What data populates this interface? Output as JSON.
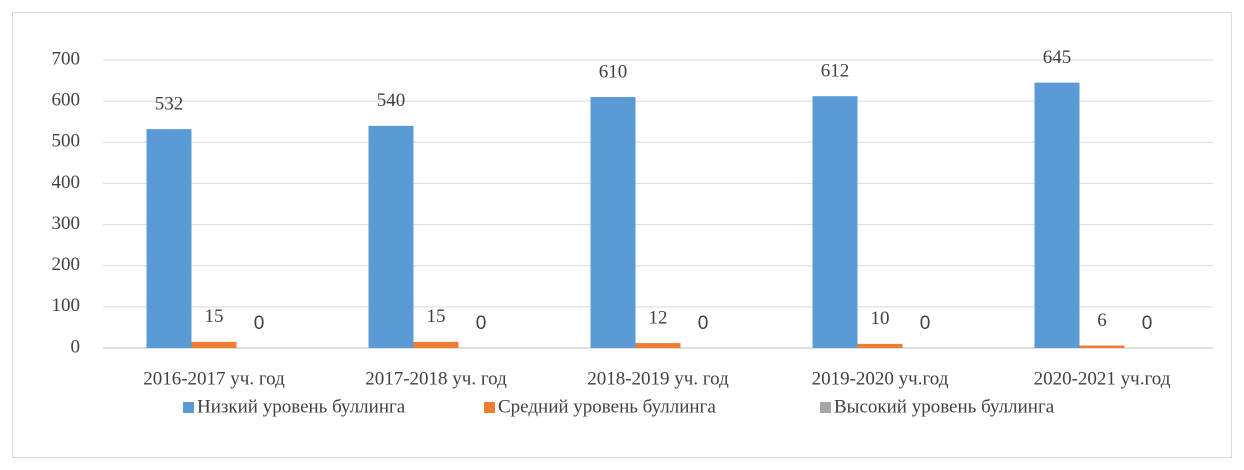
{
  "chart_data": {
    "type": "bar",
    "categories": [
      "2016-2017 уч. год",
      "2017-2018 уч. год",
      "2018-2019 уч. год",
      "2019-2020 уч.год",
      "2020-2021 уч.год"
    ],
    "series": [
      {
        "name": "Низкий уровень буллинга",
        "color": "#5b9bd5",
        "values": [
          532,
          540,
          610,
          612,
          645
        ]
      },
      {
        "name": "Средний уровень буллинга",
        "color": "#ed7d31",
        "values": [
          15,
          15,
          12,
          10,
          6
        ]
      },
      {
        "name": "Высокий уровень буллинга",
        "color": "#a5a5a5",
        "values": [
          0,
          0,
          0,
          0,
          0
        ]
      }
    ],
    "ylim": [
      0,
      700
    ],
    "yticks": [
      0,
      100,
      200,
      300,
      400,
      500,
      600,
      700
    ],
    "grid": true,
    "legend": "bottom"
  }
}
